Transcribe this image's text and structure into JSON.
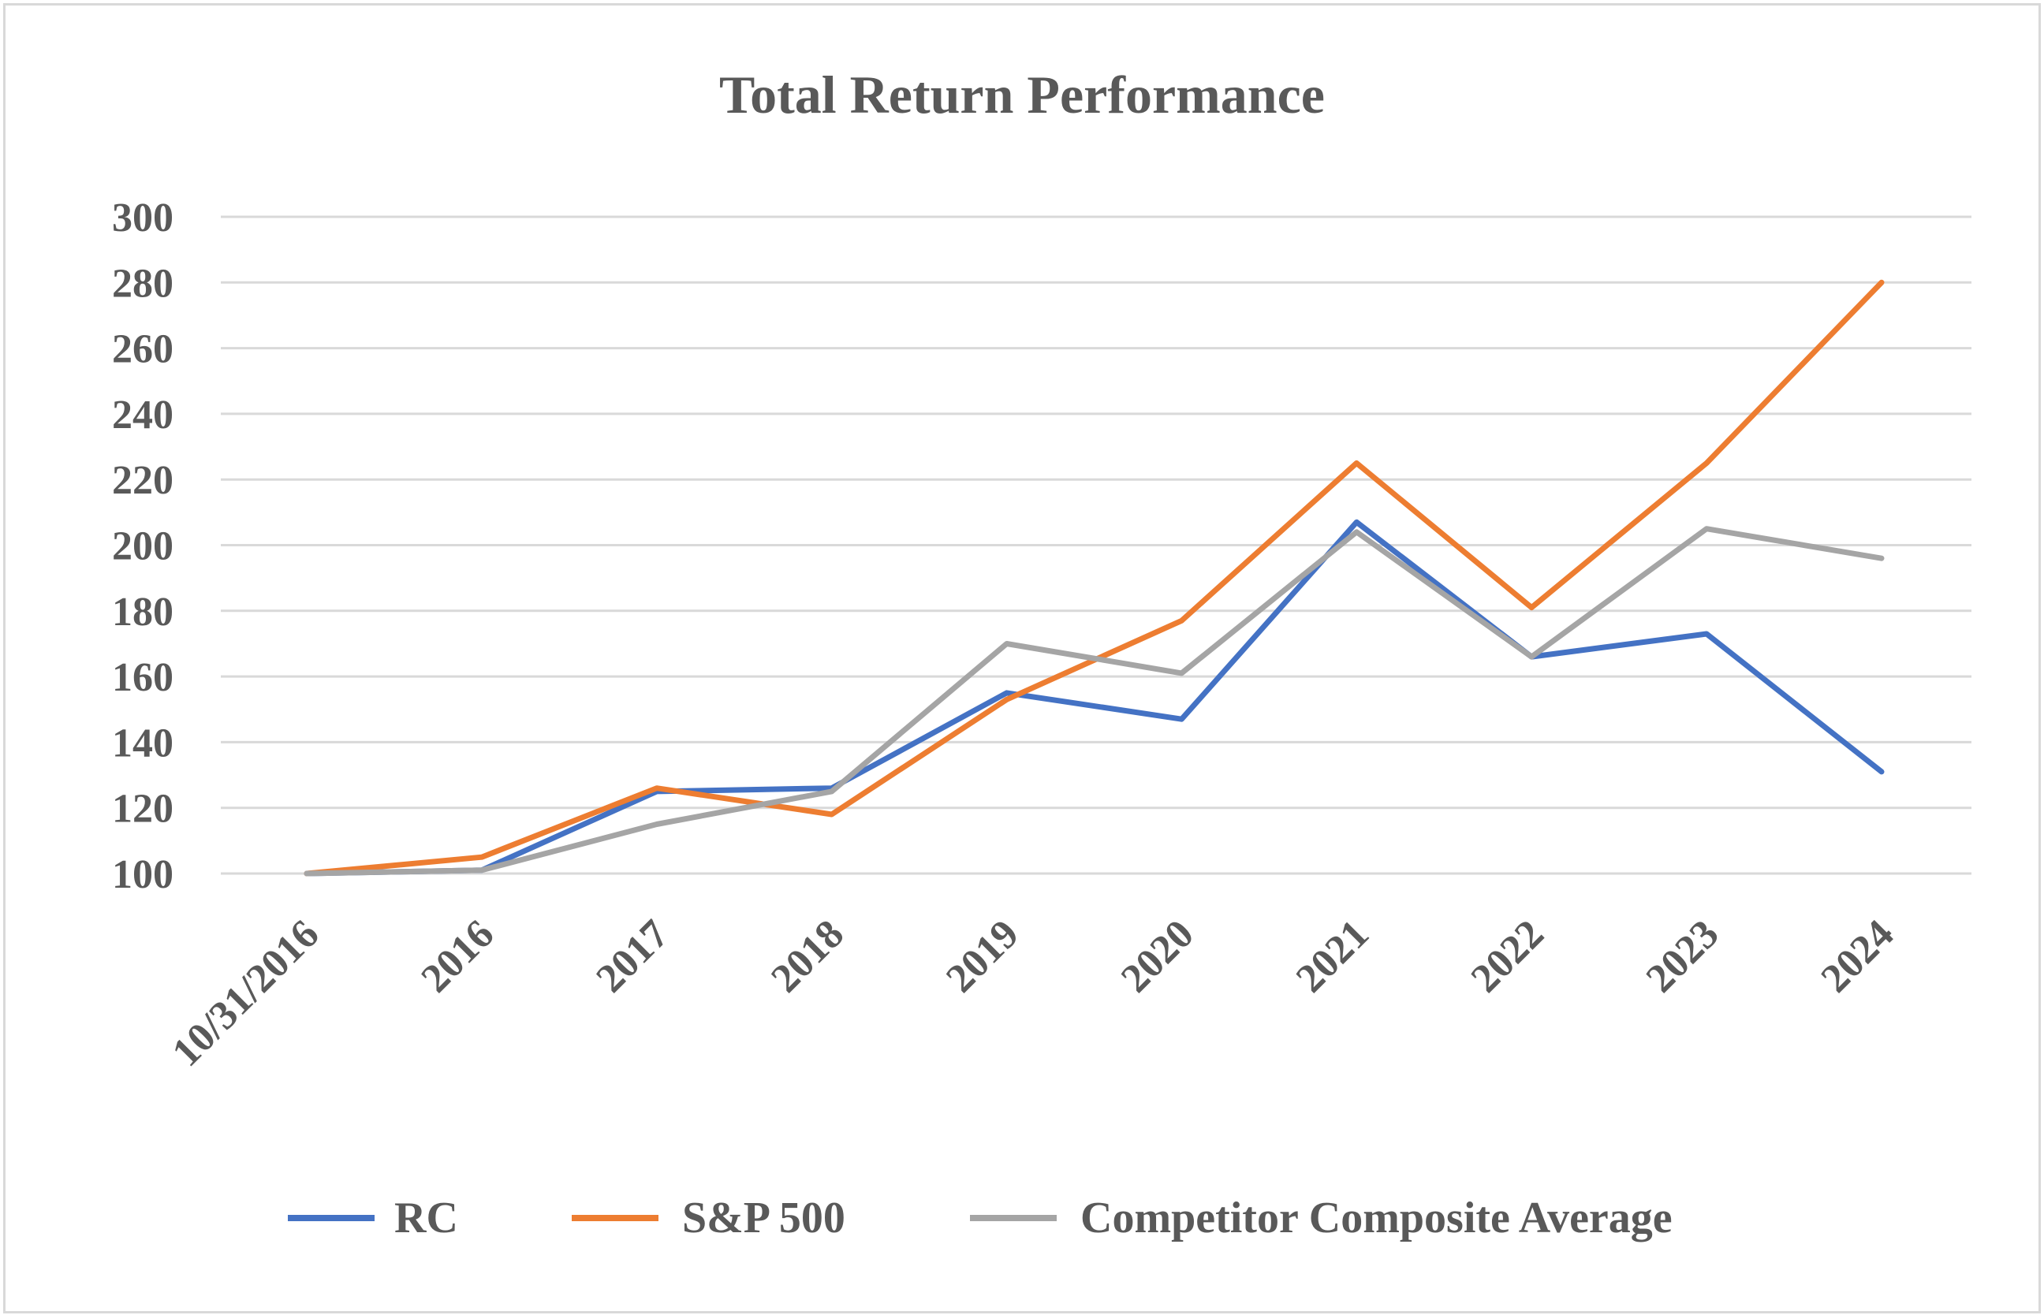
{
  "chart_data": {
    "type": "line",
    "title": "Total Return Performance",
    "xlabel": "",
    "ylabel": "",
    "categories": [
      "10/31/2016",
      "2016",
      "2017",
      "2018",
      "2019",
      "2020",
      "2021",
      "2022",
      "2023",
      "2024"
    ],
    "ylim": [
      100,
      300
    ],
    "yticks": [
      100,
      120,
      140,
      160,
      180,
      200,
      220,
      240,
      260,
      280,
      300
    ],
    "ytick_labels": [
      "100",
      "120",
      "140",
      "160",
      "180",
      "200",
      "220",
      "240",
      "260",
      "280",
      "300"
    ],
    "grid": true,
    "legend_position": "bottom",
    "series": [
      {
        "name": "RC",
        "color": "#4472c4",
        "values": [
          100,
          101,
          125,
          126,
          155,
          147,
          207,
          166,
          173,
          131
        ]
      },
      {
        "name": "S&P 500",
        "color": "#ed7d31",
        "values": [
          100,
          105,
          126,
          118,
          153,
          177,
          225,
          181,
          225,
          280
        ]
      },
      {
        "name": "Competitor Composite Average",
        "color": "#a5a5a5",
        "values": [
          100,
          101,
          115,
          125,
          170,
          161,
          204,
          166,
          205,
          196
        ]
      }
    ]
  }
}
